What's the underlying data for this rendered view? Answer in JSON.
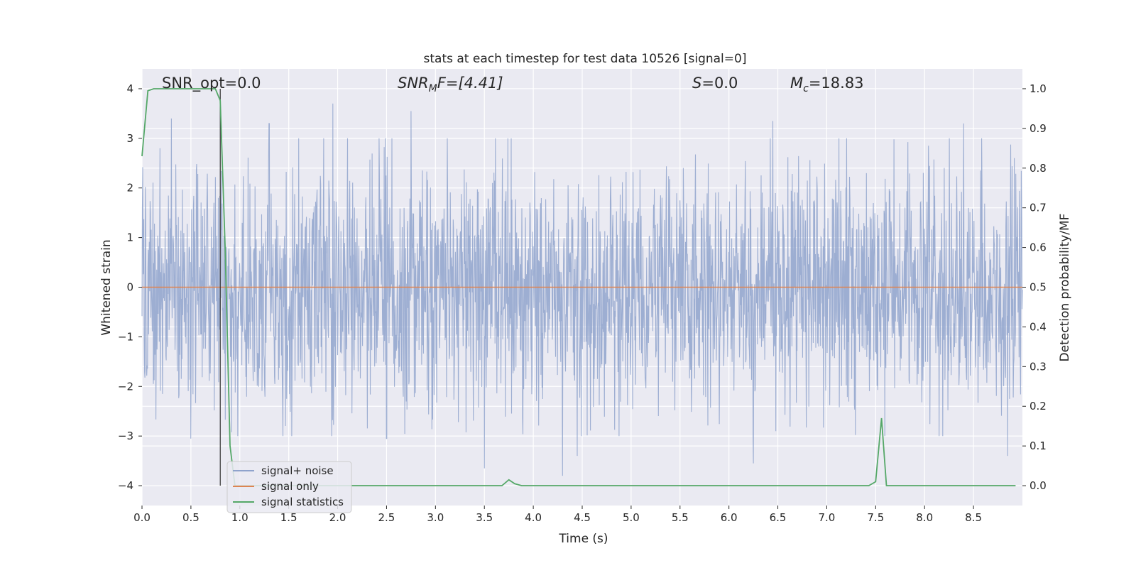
{
  "chart_data": {
    "type": "line",
    "title": "stats at each timestep for test data 10526 [signal=0]",
    "xlabel": "Time (s)",
    "ylabel": "Whitened strain",
    "y2label": "Detection probability/MF",
    "xlim": [
      0.0,
      9.0
    ],
    "ylim": [
      -4.4,
      4.4
    ],
    "y2lim": [
      -0.05,
      1.05
    ],
    "grid": true,
    "legend_position": "lower-left",
    "x_ticks": [
      "0.0",
      "0.5",
      "1.0",
      "1.5",
      "2.0",
      "2.5",
      "3.0",
      "3.5",
      "4.0",
      "4.5",
      "5.0",
      "5.5",
      "6.0",
      "6.5",
      "7.0",
      "7.5",
      "8.0",
      "8.5"
    ],
    "y_ticks": [
      "−4",
      "−3",
      "−2",
      "−1",
      "0",
      "1",
      "2",
      "3",
      "4"
    ],
    "y2_ticks": [
      "0.0",
      "0.1",
      "0.2",
      "0.3",
      "0.4",
      "0.5",
      "0.6",
      "0.7",
      "0.8",
      "0.9",
      "1.0"
    ],
    "annotations": {
      "snr_opt": "SNR_opt=0.0",
      "snr_mf_main": "SNR",
      "snr_mf_sub": "M",
      "snr_mf_tail": "F=[4.41]",
      "s_main": "S",
      "s_tail": "=0.0",
      "mc_main": "M",
      "mc_sub": "c",
      "mc_tail": "=18.83"
    },
    "marker_line_x": 0.8,
    "series": [
      {
        "name": "signal+ noise",
        "color": "#8fa3cc",
        "description_values": "whitened noise, approx |y|<=1.6 dense band with spikes up to about +3.9 / -3.8",
        "envelope_amplitude": 1.6,
        "peak_values": [
          {
            "x": 0.3,
            "y": 3.4
          },
          {
            "x": 0.5,
            "y": 3.35
          },
          {
            "x": 1.3,
            "y": 3.3
          },
          {
            "x": 1.95,
            "y": 3.7
          },
          {
            "x": 2.75,
            "y": 3.55
          },
          {
            "x": 3.5,
            "y": 3.97
          },
          {
            "x": 6.45,
            "y": 3.35
          },
          {
            "x": 8.4,
            "y": 3.3
          },
          {
            "x": 8.85,
            "y": 3.25
          },
          {
            "x": 0.5,
            "y": -3.05
          },
          {
            "x": 2.5,
            "y": -3.05
          },
          {
            "x": 3.5,
            "y": -3.65
          },
          {
            "x": 4.3,
            "y": -3.8
          },
          {
            "x": 4.45,
            "y": -3.4
          },
          {
            "x": 6.25,
            "y": -3.55
          },
          {
            "x": 8.85,
            "y": -3.4
          }
        ]
      },
      {
        "name": "signal only",
        "color": "#dd8452",
        "x": [
          0.0,
          9.0
        ],
        "y": [
          0.0,
          0.0
        ]
      },
      {
        "name": "signal statistics",
        "color": "#55a868",
        "axis": "right",
        "x": [
          0.0,
          0.06,
          0.12,
          0.2,
          0.5,
          0.75,
          0.8,
          0.85,
          0.9,
          0.95,
          1.0,
          1.5,
          2.0,
          3.0,
          3.68,
          3.75,
          3.81,
          3.88,
          4.0,
          5.0,
          6.0,
          7.0,
          7.43,
          7.5,
          7.56,
          7.61,
          7.65,
          8.0,
          8.93
        ],
        "y": [
          0.83,
          0.995,
          1.0,
          1.0,
          1.0,
          1.0,
          0.97,
          0.6,
          0.1,
          0.0,
          0.0,
          0.0,
          0.0,
          0.0,
          0.0,
          0.015,
          0.005,
          0.0,
          0.0,
          0.0,
          0.0,
          0.0,
          0.0,
          0.01,
          0.17,
          0.0,
          0.0,
          0.0,
          0.0
        ]
      }
    ]
  }
}
